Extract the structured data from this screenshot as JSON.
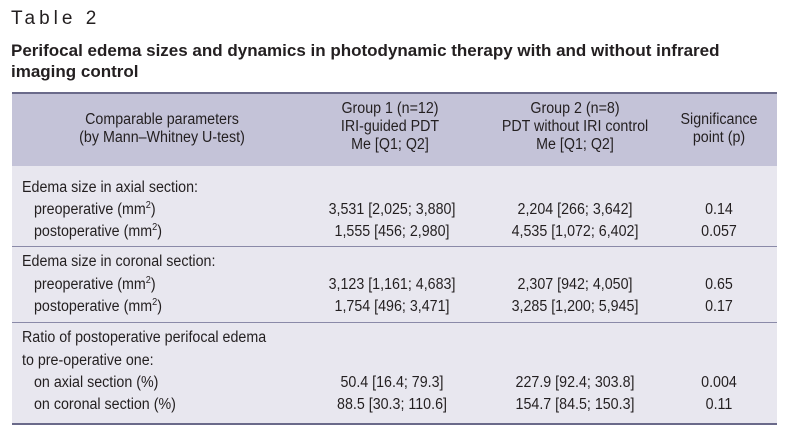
{
  "table_label": "Table 2",
  "caption": "Perifocal edema sizes and dynamics in photodynamic therapy with and without infrared imaging control",
  "headers": {
    "param": [
      "Comparable parameters",
      "(by Mann–Whitney U-test)"
    ],
    "group1": [
      "Group 1 (n=12)",
      "IRI-guided PDT",
      "Me [Q1; Q2]"
    ],
    "group2": [
      "Group 2 (n=8)",
      "PDT without IRI control",
      "Me [Q1; Q2]"
    ],
    "p": [
      "Significance",
      "point (p)"
    ]
  },
  "sections": [
    {
      "title": "Edema size in axial section:",
      "rows": [
        {
          "label": "preoperative (mm",
          "unit_sup": "2",
          "label_end": ")",
          "g1": "3,531 [2,025; 3,880]",
          "g2": "2,204 [266; 3,642]",
          "p": "0.14"
        },
        {
          "label": "postoperative (mm",
          "unit_sup": "2",
          "label_end": ")",
          "g1": "1,555 [456; 2,980]",
          "g2": "4,535 [1,072; 6,402]",
          "p": "0.057"
        }
      ]
    },
    {
      "title": "Edema size in coronal section:",
      "rows": [
        {
          "label": "preoperative (mm",
          "unit_sup": "2",
          "label_end": ")",
          "g1": "3,123 [1,161; 4,683]",
          "g2": "2,307 [942; 4,050]",
          "p": "0.65"
        },
        {
          "label": "postoperative (mm",
          "unit_sup": "2",
          "label_end": ")",
          "g1": "1,754 [496; 3,471]",
          "g2": "3,285 [1,200; 5,945]",
          "p": "0.17"
        }
      ]
    },
    {
      "title_lines": [
        "Ratio of postoperative perifocal edema",
        "to pre-operative one:"
      ],
      "rows": [
        {
          "label": "on axial section (%)",
          "g1": "50.4 [16.4; 79.3]",
          "g2": "227.9 [92.4; 303.8]",
          "p": "0.004"
        },
        {
          "label": "on coronal section (%)",
          "g1": "88.5 [30.3; 110.6]",
          "g2": "154.7 [84.5; 150.3]",
          "p": "0.11"
        }
      ]
    }
  ]
}
